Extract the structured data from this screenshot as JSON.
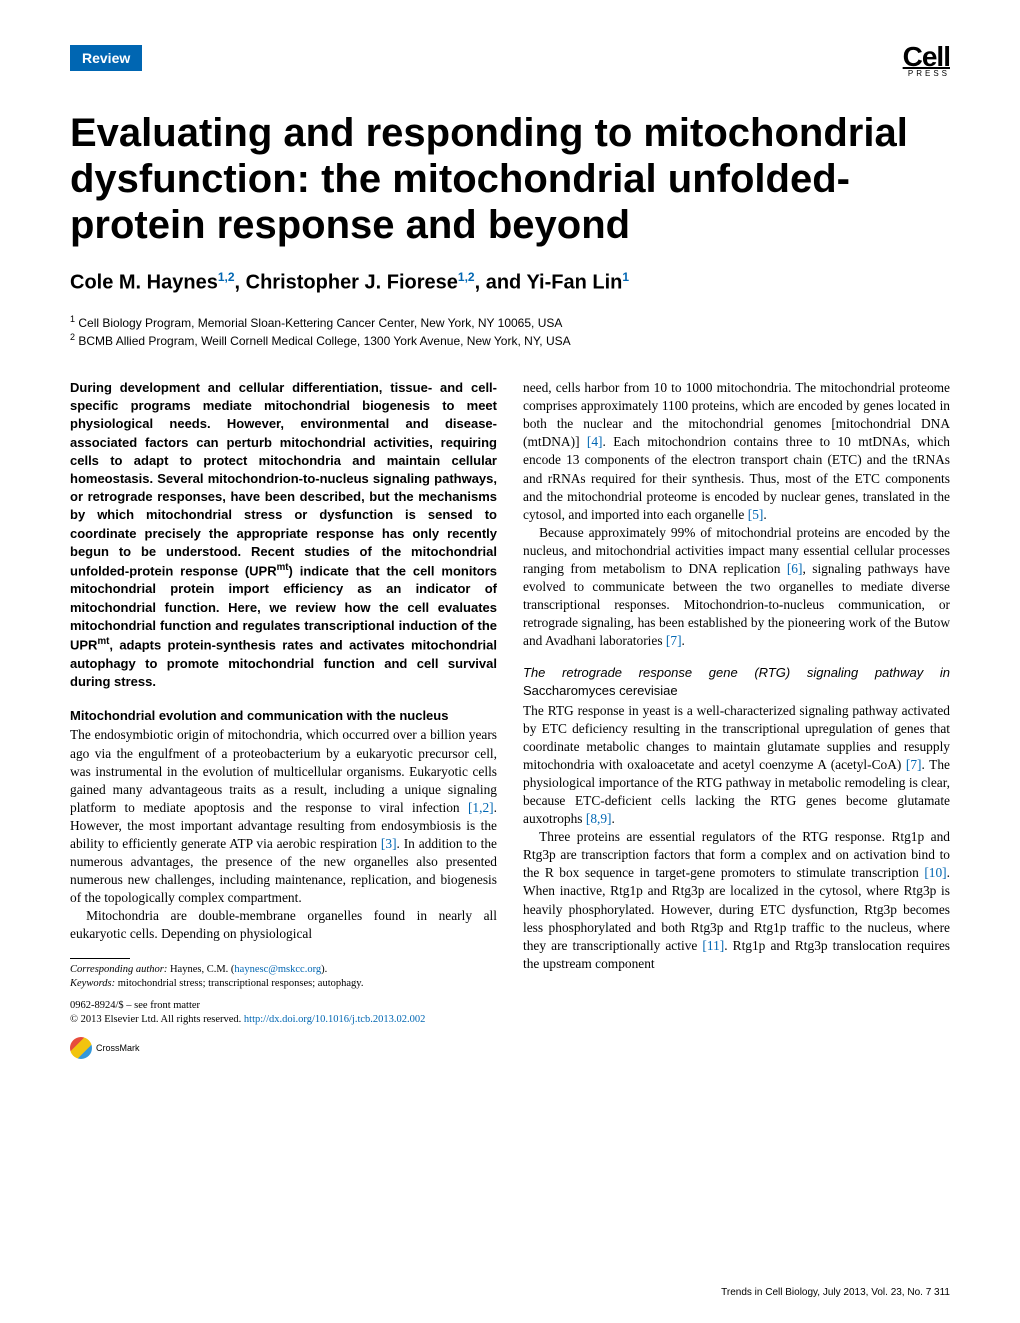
{
  "header": {
    "review_tag": "Review",
    "logo_main": "Cell",
    "logo_sub": "PRESS"
  },
  "title": "Evaluating and responding to mitochondrial dysfunction: the mitochondrial unfolded-protein response and beyond",
  "authors_html": "Cole M. Haynes<sup>1,2</sup>, Christopher J. Fiorese<sup>1,2</sup>, and Yi-Fan Lin<sup>1</sup>",
  "affiliations": [
    {
      "num": "1",
      "text": "Cell Biology Program, Memorial Sloan-Kettering Cancer Center, New York, NY 10065, USA"
    },
    {
      "num": "2",
      "text": "BCMB Allied Program, Weill Cornell Medical College, 1300 York Avenue, New York, NY, USA"
    }
  ],
  "abstract": "During development and cellular differentiation, tissue- and cell-specific programs mediate mitochondrial biogenesis to meet physiological needs. However, environmental and disease-associated factors can perturb mitochondrial activities, requiring cells to adapt to protect mitochondria and maintain cellular homeostasis. Several mitochondrion-to-nucleus signaling pathways, or retrograde responses, have been described, but the mechanisms by which mitochondrial stress or dysfunction is sensed to coordinate precisely the appropriate response has only recently begun to be understood. Recent studies of the mitochondrial unfolded-protein response (UPR<sup class=\"mt\">mt</sup>) indicate that the cell monitors mitochondrial protein import efficiency as an indicator of mitochondrial function. Here, we review how the cell evaluates mitochondrial function and regulates transcriptional induction of the UPR<sup class=\"mt\">mt</sup>, adapts protein-synthesis rates and activates mitochondrial autophagy to promote mitochondrial function and cell survival during stress.",
  "section1_heading": "Mitochondrial evolution and communication with the nucleus",
  "section1_p1": "The endosymbiotic origin of mitochondria, which occurred over a billion years ago via the engulfment of a proteobacterium by a eukaryotic precursor cell, was instrumental in the evolution of multicellular organisms. Eukaryotic cells gained many advantageous traits as a result, including a unique signaling platform to mediate apoptosis and the response to viral infection <span class=\"ref\">[1,2]</span>. However, the most important advantage resulting from endosymbiosis is the ability to efficiently generate ATP via aerobic respiration <span class=\"ref\">[3]</span>. In addition to the numerous advantages, the presence of the new organelles also presented numerous new challenges, including maintenance, replication, and biogenesis of the topologically complex compartment.",
  "section1_p2": "Mitochondria are double-membrane organelles found in nearly all eukaryotic cells. Depending on physiological",
  "col2_p1": "need, cells harbor from 10 to 1000 mitochondria. The mitochondrial proteome comprises approximately 1100 proteins, which are encoded by genes located in both the nuclear and the mitochondrial genomes [mitochondrial DNA (mtDNA)] <span class=\"ref\">[4]</span>. Each mitochondrion contains three to 10 mtDNAs, which encode 13 components of the electron transport chain (ETC) and the tRNAs and rRNAs required for their synthesis. Thus, most of the ETC components and the mitochondrial proteome is encoded by nuclear genes, translated in the cytosol, and imported into each organelle <span class=\"ref\">[5]</span>.",
  "col2_p2": "Because approximately 99% of mitochondrial proteins are encoded by the nucleus, and mitochondrial activities impact many essential cellular processes ranging from metabolism to DNA replication <span class=\"ref\">[6]</span>, signaling pathways have evolved to communicate between the two organelles to mediate diverse transcriptional responses. Mitochondrion-to-nucleus communication, or retrograde signaling, has been established by the pioneering work of the Butow and Avadhani laboratories <span class=\"ref\">[7]</span>.",
  "section2_heading": "The retrograde response gene (RTG) signaling pathway in",
  "section2_species": "Saccharomyces cerevisiae",
  "section2_p1": "The RTG response in yeast is a well-characterized signaling pathway activated by ETC deficiency resulting in the transcriptional upregulation of genes that coordinate metabolic changes to maintain glutamate supplies and resupply mitochondria with oxaloacetate and acetyl coenzyme A (acetyl-CoA) <span class=\"ref\">[7]</span>. The physiological importance of the RTG pathway in metabolic remodeling is clear, because ETC-deficient cells lacking the RTG genes become glutamate auxotrophs <span class=\"ref\">[8,9]</span>.",
  "section2_p2": "Three proteins are essential regulators of the RTG response. Rtg1p and Rtg3p are transcription factors that form a complex and on activation bind to the R box sequence in target-gene promoters to stimulate transcription <span class=\"ref\">[10]</span>. When inactive, Rtg1p and Rtg3p are localized in the cytosol, where Rtg3p is heavily phosphorylated. However, during ETC dysfunction, Rtg3p becomes less phosphorylated and both Rtg3p and Rtg1p traffic to the nucleus, where they are transcriptionally active <span class=\"ref\">[11]</span>. Rtg1p and Rtg3p translocation requires the upstream component",
  "footnotes": {
    "corresponding_label": "Corresponding author:",
    "corresponding_text": "Haynes, C.M. (",
    "email": "haynesc@mskcc.org",
    "corresponding_close": ").",
    "keywords_label": "Keywords:",
    "keywords_text": "mitochondrial stress; transcriptional responses; autophagy.",
    "issn": "0962-8924/$ – see front matter",
    "copyright": "© 2013 Elsevier Ltd. All rights reserved. ",
    "doi": "http://dx.doi.org/10.1016/j.tcb.2013.02.002",
    "crossmark": "CrossMark"
  },
  "footer": "Trends in Cell Biology, July 2013, Vol. 23, No. 7    311",
  "colors": {
    "accent": "#0066b2",
    "text": "#000000",
    "background": "#ffffff"
  }
}
